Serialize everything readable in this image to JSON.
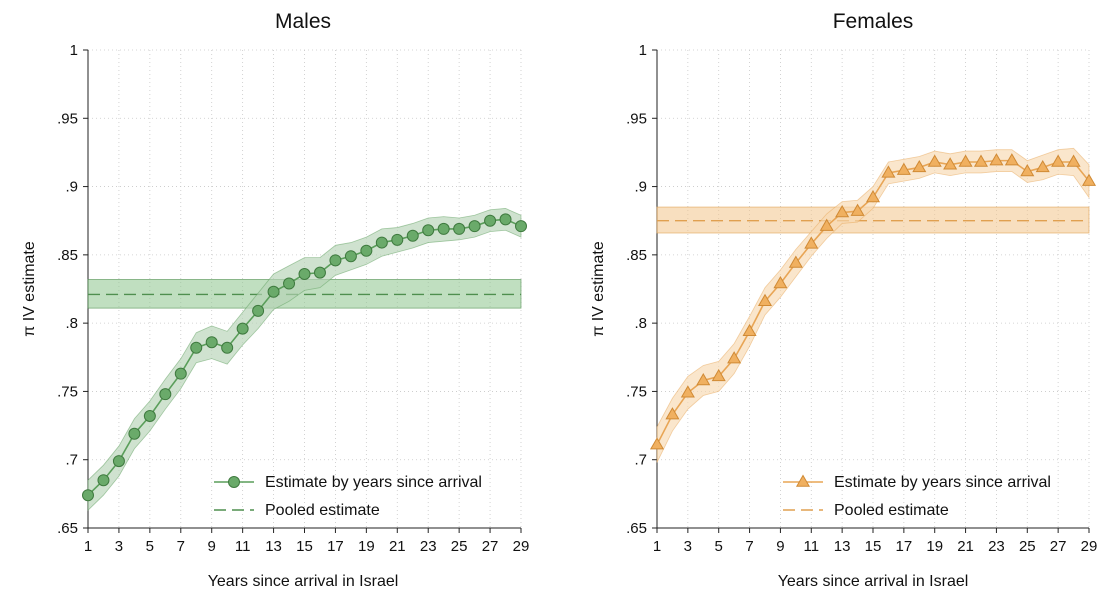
{
  "chart_data": [
    {
      "type": "line",
      "title": "Males",
      "xlabel": "Years since arrival in Israel",
      "ylabel": "π IV estimate",
      "xlim": [
        1,
        29
      ],
      "ylim": [
        0.65,
        1.0
      ],
      "xticks": [
        1,
        3,
        5,
        7,
        9,
        11,
        13,
        15,
        17,
        19,
        21,
        23,
        25,
        27,
        29
      ],
      "xtick_labels": [
        "1",
        "3",
        "5",
        "7",
        "9",
        "11",
        "13",
        "15",
        "17",
        "19",
        "21",
        "23",
        "25",
        "27",
        "29"
      ],
      "yticks": [
        0.65,
        0.7,
        0.75,
        0.8,
        0.85,
        0.9,
        0.95,
        1.0
      ],
      "ytick_labels": [
        ".65",
        ".7",
        ".75",
        ".8",
        ".85",
        ".9",
        ".95",
        "1"
      ],
      "grid": true,
      "legend_position": "bottom-right",
      "legend": [
        "Estimate by years since arrival",
        "Pooled estimate"
      ],
      "marker": "circle",
      "colors": {
        "line": "#5a9e5a",
        "marker_fill": "#6aaa6a",
        "marker_edge": "#3f7a3f",
        "band": "#b6d3b6",
        "pooled_band": "#8cc48c",
        "pooled_line": "#4f8f4f"
      },
      "x": [
        1,
        2,
        3,
        4,
        5,
        6,
        7,
        8,
        9,
        10,
        11,
        12,
        13,
        14,
        15,
        16,
        17,
        18,
        19,
        20,
        21,
        22,
        23,
        24,
        25,
        26,
        27,
        28,
        29
      ],
      "series": [
        {
          "name": "Estimate by years since arrival",
          "values": [
            0.674,
            0.685,
            0.699,
            0.719,
            0.732,
            0.748,
            0.763,
            0.782,
            0.786,
            0.782,
            0.796,
            0.809,
            0.823,
            0.829,
            0.836,
            0.837,
            0.846,
            0.849,
            0.853,
            0.859,
            0.861,
            0.864,
            0.868,
            0.869,
            0.869,
            0.871,
            0.875,
            0.876,
            0.871
          ],
          "ci_halfwidth": [
            0.011,
            0.011,
            0.011,
            0.011,
            0.011,
            0.011,
            0.011,
            0.011,
            0.012,
            0.012,
            0.012,
            0.013,
            0.013,
            0.013,
            0.012,
            0.011,
            0.011,
            0.01,
            0.01,
            0.01,
            0.009,
            0.009,
            0.009,
            0.009,
            0.008,
            0.008,
            0.008,
            0.008,
            0.008
          ]
        }
      ],
      "pooled": {
        "name": "Pooled estimate",
        "value": 0.821,
        "low": 0.811,
        "high": 0.832
      }
    },
    {
      "type": "line",
      "title": "Females",
      "xlabel": "Years since arrival in Israel",
      "ylabel": "π IV estimate",
      "xlim": [
        1,
        29
      ],
      "ylim": [
        0.65,
        1.0
      ],
      "xticks": [
        1,
        3,
        5,
        7,
        9,
        11,
        13,
        15,
        17,
        19,
        21,
        23,
        25,
        27,
        29
      ],
      "xtick_labels": [
        "1",
        "3",
        "5",
        "7",
        "9",
        "11",
        "13",
        "15",
        "17",
        "19",
        "21",
        "23",
        "25",
        "27",
        "29"
      ],
      "yticks": [
        0.65,
        0.7,
        0.75,
        0.8,
        0.85,
        0.9,
        0.95,
        1.0
      ],
      "ytick_labels": [
        ".65",
        ".7",
        ".75",
        ".8",
        ".85",
        ".9",
        ".95",
        "1"
      ],
      "grid": true,
      "legend_position": "bottom-right",
      "legend": [
        "Estimate by years since arrival",
        "Pooled estimate"
      ],
      "marker": "triangle",
      "colors": {
        "line": "#e8a555",
        "marker_fill": "#f0b060",
        "marker_edge": "#d08a35",
        "band": "#f8d9b0",
        "pooled_band": "#f3c48a",
        "pooled_line": "#e0a050"
      },
      "x": [
        1,
        2,
        3,
        4,
        5,
        6,
        7,
        8,
        9,
        10,
        11,
        12,
        13,
        14,
        15,
        16,
        17,
        18,
        19,
        20,
        21,
        22,
        23,
        24,
        25,
        26,
        27,
        28,
        29
      ],
      "series": [
        {
          "name": "Estimate by years since arrival",
          "values": [
            0.711,
            0.733,
            0.749,
            0.758,
            0.761,
            0.774,
            0.794,
            0.816,
            0.829,
            0.844,
            0.858,
            0.871,
            0.881,
            0.882,
            0.892,
            0.91,
            0.912,
            0.914,
            0.918,
            0.916,
            0.918,
            0.918,
            0.919,
            0.919,
            0.911,
            0.914,
            0.918,
            0.918,
            0.904
          ],
          "ci_halfwidth": [
            0.013,
            0.012,
            0.012,
            0.011,
            0.011,
            0.011,
            0.011,
            0.01,
            0.01,
            0.01,
            0.009,
            0.009,
            0.008,
            0.008,
            0.008,
            0.008,
            0.008,
            0.008,
            0.008,
            0.008,
            0.008,
            0.008,
            0.008,
            0.008,
            0.008,
            0.009,
            0.009,
            0.01,
            0.012
          ]
        }
      ],
      "pooled": {
        "name": "Pooled estimate",
        "value": 0.875,
        "low": 0.866,
        "high": 0.885
      }
    }
  ]
}
